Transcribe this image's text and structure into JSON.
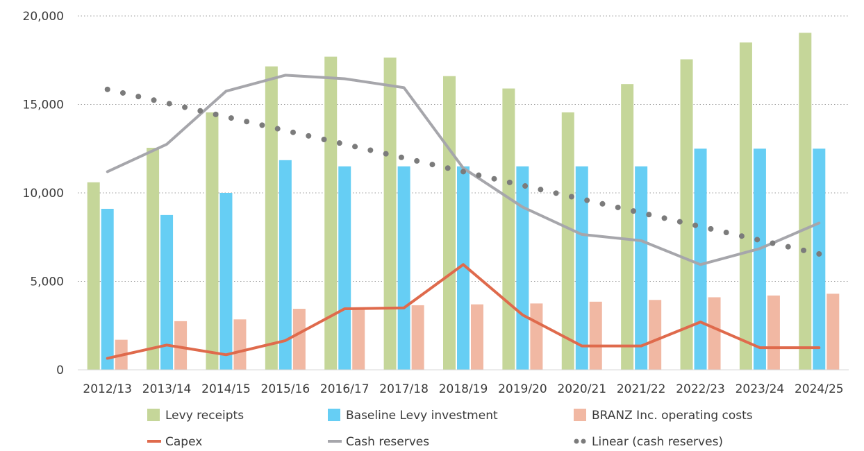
{
  "chart_data": {
    "type": "bar",
    "title": "",
    "xlabel": "",
    "ylabel": "",
    "ylim": [
      0,
      20000
    ],
    "yticks": [
      0,
      5000,
      10000,
      15000,
      20000
    ],
    "ytick_labels": [
      "0",
      "5,000",
      "10,000",
      "15,000",
      "20,000"
    ],
    "grid": "horizontal dotted",
    "legend_position": "bottom",
    "categories": [
      "2012/13",
      "2013/14",
      "2014/15",
      "2015/16",
      "2016/17",
      "2017/18",
      "2018/19",
      "2019/20",
      "2020/21",
      "2021/22",
      "2022/23",
      "2023/24",
      "2024/25"
    ],
    "bar_series": [
      {
        "name": "Levy receipts",
        "color": "#c5d699",
        "values": [
          10600,
          12550,
          14550,
          17150,
          17700,
          17650,
          16600,
          15900,
          14550,
          16150,
          17550,
          18500,
          19050
        ]
      },
      {
        "name": "Baseline Levy investment",
        "color": "#66cef4",
        "values": [
          9100,
          8750,
          10000,
          11850,
          11500,
          11500,
          11500,
          11500,
          11500,
          11500,
          12500,
          12500,
          12500
        ]
      },
      {
        "name": "BRANZ Inc. operating costs",
        "color": "#f1b8a3",
        "values": [
          1700,
          2750,
          2850,
          3450,
          3450,
          3650,
          3700,
          3750,
          3850,
          3950,
          4100,
          4200,
          4300
        ]
      }
    ],
    "line_series": [
      {
        "name": "Capex",
        "color": "#df6a4c",
        "style": "solid",
        "values": [
          650,
          1400,
          850,
          1650,
          3450,
          3500,
          5950,
          3100,
          1350,
          1350,
          2700,
          1250,
          1250
        ]
      },
      {
        "name": "Cash reserves",
        "color": "#a6a6ab",
        "style": "solid",
        "values": [
          11200,
          12750,
          15750,
          16650,
          16450,
          15950,
          11400,
          9200,
          7650,
          7300,
          5950,
          6850,
          8300
        ]
      },
      {
        "name": "Linear (cash reserves)",
        "color": "#7b7b7b",
        "style": "dotted",
        "values": [
          15850,
          15085,
          14320,
          13555,
          12790,
          12025,
          11260,
          10495,
          9730,
          8965,
          8200,
          7435,
          6550
        ]
      }
    ]
  }
}
